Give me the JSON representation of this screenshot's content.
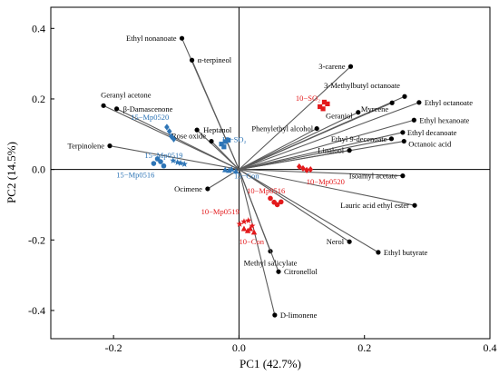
{
  "chart_data": {
    "type": "biplot",
    "xlabel": "PC1 (42.7%)",
    "ylabel": "PC2 (14.5%)",
    "xlim": [
      -0.3,
      0.4
    ],
    "ylim": [
      -0.48,
      0.46
    ],
    "xticks": [
      -0.2,
      0.0,
      0.2,
      0.4
    ],
    "yticks": [
      -0.4,
      -0.2,
      0.0,
      0.2,
      0.4
    ],
    "tick_labels_x": [
      "-0.2",
      "0.0",
      "0.2",
      "0.4"
    ],
    "tick_labels_y": [
      "-0.4",
      "-0.2",
      "0.0",
      "0.2",
      "0.4"
    ],
    "loading_color": "#5a5a5a",
    "loadings": [
      {
        "name": "Ethyl nonanoate",
        "x": -0.091,
        "y": 0.372,
        "anchor": "end",
        "dx": -6,
        "dy": 3
      },
      {
        "name": "α-terpineol",
        "x": -0.075,
        "y": 0.31,
        "anchor": "start",
        "dx": 6,
        "dy": 3
      },
      {
        "name": "Geranyl acetone",
        "x": -0.216,
        "y": 0.181,
        "anchor": "start",
        "dx": -3,
        "dy": -9
      },
      {
        "name": "β-Damascenone",
        "x": -0.195,
        "y": 0.172,
        "anchor": "start",
        "dx": 7,
        "dy": 3
      },
      {
        "name": "Heptanol",
        "x": -0.067,
        "y": 0.112,
        "anchor": "start",
        "dx": 7,
        "dy": 3
      },
      {
        "name": "Terpinolene",
        "x": -0.206,
        "y": 0.067,
        "anchor": "end",
        "dx": -6,
        "dy": 3
      },
      {
        "name": "Rose oxide",
        "x": -0.044,
        "y": 0.08,
        "anchor": "end",
        "dx": -6,
        "dy": -3
      },
      {
        "name": "Ocimene",
        "x": -0.05,
        "y": -0.055,
        "anchor": "end",
        "dx": -6,
        "dy": 3
      },
      {
        "name": "3-carene",
        "x": 0.178,
        "y": 0.292,
        "anchor": "end",
        "dx": -6,
        "dy": 3
      },
      {
        "name": "3-Methylbutyl octanoate",
        "x": 0.264,
        "y": 0.207,
        "anchor": "end",
        "dx": -5,
        "dy": -9
      },
      {
        "name": "Ethyl octanoate",
        "x": 0.287,
        "y": 0.19,
        "anchor": "start",
        "dx": 6,
        "dy": 3
      },
      {
        "name": "Myrcene",
        "x": 0.244,
        "y": 0.189,
        "anchor": "end",
        "dx": -4,
        "dy": 10
      },
      {
        "name": "Geraniol",
        "x": 0.19,
        "y": 0.162,
        "anchor": "end",
        "dx": -6,
        "dy": 7
      },
      {
        "name": "Ethyl hexanoate",
        "x": 0.279,
        "y": 0.14,
        "anchor": "start",
        "dx": 6,
        "dy": 3
      },
      {
        "name": "Phenylethyl alcohol",
        "x": 0.124,
        "y": 0.116,
        "anchor": "end",
        "dx": -4,
        "dy": 3
      },
      {
        "name": "Ethyl decanoate",
        "x": 0.261,
        "y": 0.105,
        "anchor": "start",
        "dx": 5,
        "dy": 3
      },
      {
        "name": "Ethyl 9-decenoate",
        "x": 0.243,
        "y": 0.087,
        "anchor": "end",
        "dx": -5,
        "dy": 3
      },
      {
        "name": "Octanoic acid",
        "x": 0.263,
        "y": 0.08,
        "anchor": "start",
        "dx": 5,
        "dy": 6
      },
      {
        "name": "Linalool",
        "x": 0.176,
        "y": 0.054,
        "anchor": "end",
        "dx": -6,
        "dy": 3
      },
      {
        "name": "Isoamyl acetate",
        "x": 0.261,
        "y": -0.018,
        "anchor": "end",
        "dx": -6,
        "dy": 3
      },
      {
        "name": "Lauric acid ethyl ester",
        "x": 0.28,
        "y": -0.102,
        "anchor": "end",
        "dx": -6,
        "dy": 3
      },
      {
        "name": "Nerol",
        "x": 0.176,
        "y": -0.205,
        "anchor": "end",
        "dx": -6,
        "dy": 3
      },
      {
        "name": "Ethyl butyrate",
        "x": 0.222,
        "y": -0.235,
        "anchor": "start",
        "dx": 6,
        "dy": 3
      },
      {
        "name": "Methyl salicylate",
        "x": 0.05,
        "y": -0.232,
        "anchor": "middle",
        "dx": 0,
        "dy": 16
      },
      {
        "name": "Citronellol",
        "x": 0.063,
        "y": -0.29,
        "anchor": "start",
        "dx": 6,
        "dy": 3
      },
      {
        "name": "D-limonene",
        "x": 0.057,
        "y": -0.413,
        "anchor": "start",
        "dx": 6,
        "dy": 3
      }
    ],
    "groups": [
      {
        "name": "15−Mp0520",
        "color": "#2e75b6",
        "marker": "diamond",
        "points": [
          [
            -0.115,
            0.12
          ],
          [
            -0.111,
            0.108
          ],
          [
            -0.108,
            0.094
          ],
          [
            -0.104,
            0.086
          ]
        ],
        "label": {
          "x": -0.142,
          "y": 0.148,
          "anchor": "middle"
        }
      },
      {
        "name": "15−Mp0519",
        "color": "#2e75b6",
        "marker": "star",
        "points": [
          [
            -0.105,
            0.025
          ],
          [
            -0.098,
            0.02
          ],
          [
            -0.093,
            0.018
          ],
          [
            -0.087,
            0.015
          ]
        ],
        "label": {
          "x": -0.12,
          "y": 0.04,
          "anchor": "middle"
        }
      },
      {
        "name": "15−Mp0516",
        "color": "#2e75b6",
        "marker": "circle",
        "points": [
          [
            -0.13,
            0.03
          ],
          [
            -0.125,
            0.022
          ],
          [
            -0.136,
            0.017
          ],
          [
            -0.12,
            0.01
          ]
        ],
        "label": {
          "x": -0.165,
          "y": -0.015,
          "anchor": "middle"
        }
      },
      {
        "name": "15−SO₂",
        "color": "#2e75b6",
        "marker": "square",
        "points": [
          [
            -0.028,
            0.072
          ],
          [
            -0.022,
            0.079
          ],
          [
            -0.017,
            0.083
          ],
          [
            -0.024,
            0.064
          ]
        ],
        "label": {
          "x": -0.008,
          "y": 0.085,
          "anchor": "middle"
        }
      },
      {
        "name": "15−Con",
        "color": "#2e75b6",
        "marker": "triangle",
        "points": [
          [
            -0.022,
            -0.001
          ],
          [
            -0.016,
            -0.003
          ],
          [
            -0.012,
            0.001
          ],
          [
            -0.005,
            -0.005
          ]
        ],
        "label": {
          "x": 0.012,
          "y": -0.018,
          "anchor": "middle"
        }
      },
      {
        "name": "10−SO₂",
        "color": "#e31a1c",
        "marker": "square",
        "points": [
          [
            0.129,
            0.178
          ],
          [
            0.136,
            0.191
          ],
          [
            0.141,
            0.186
          ],
          [
            0.134,
            0.172
          ]
        ],
        "label": {
          "x": 0.11,
          "y": 0.203,
          "anchor": "middle"
        }
      },
      {
        "name": "10−Mp0520",
        "color": "#e31a1c",
        "marker": "diamond",
        "points": [
          [
            0.096,
            0.008
          ],
          [
            0.102,
            0.003
          ],
          [
            0.108,
            -0.002
          ],
          [
            0.114,
            0.0
          ]
        ],
        "label": {
          "x": 0.138,
          "y": -0.035,
          "anchor": "middle"
        }
      },
      {
        "name": "10−Mp0516",
        "color": "#e31a1c",
        "marker": "circle",
        "points": [
          [
            0.05,
            -0.082
          ],
          [
            0.056,
            -0.093
          ],
          [
            0.061,
            -0.1
          ],
          [
            0.067,
            -0.092
          ]
        ],
        "label": {
          "x": 0.043,
          "y": -0.06,
          "anchor": "middle"
        }
      },
      {
        "name": "10−Mp0519",
        "color": "#e31a1c",
        "marker": "star",
        "points": [
          [
            0.001,
            -0.155
          ],
          [
            0.008,
            -0.148
          ],
          [
            0.015,
            -0.145
          ],
          [
            0.021,
            -0.16
          ]
        ],
        "label": {
          "x": -0.03,
          "y": -0.12,
          "anchor": "middle"
        }
      },
      {
        "name": "10−Con",
        "color": "#e31a1c",
        "marker": "triangle",
        "points": [
          [
            0.008,
            -0.168
          ],
          [
            0.014,
            -0.174
          ],
          [
            0.018,
            -0.168
          ],
          [
            0.024,
            -0.178
          ]
        ],
        "label": {
          "x": 0.02,
          "y": -0.205,
          "anchor": "middle"
        }
      }
    ]
  }
}
